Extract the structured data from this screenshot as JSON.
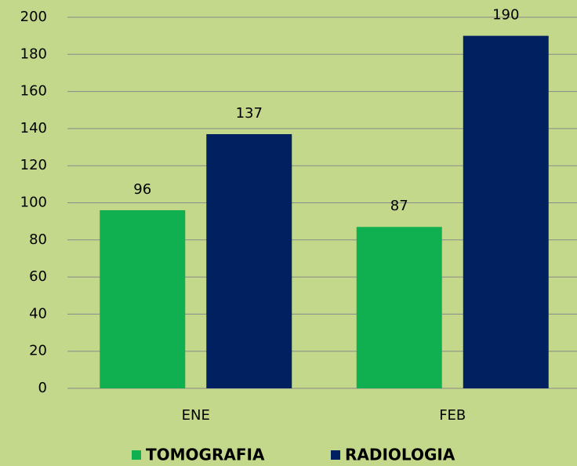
{
  "chart_data": {
    "type": "bar",
    "categories": [
      "ENE",
      "FEB"
    ],
    "series": [
      {
        "name": "TOMOGRAFIA",
        "color": "#10b050",
        "values": [
          96,
          87
        ]
      },
      {
        "name": "RADIOLOGIA",
        "color": "#002060",
        "values": [
          137,
          190
        ]
      }
    ],
    "ylim": [
      0,
      200
    ],
    "yticks": [
      0,
      20,
      40,
      60,
      80,
      100,
      120,
      140,
      160,
      180,
      200
    ],
    "grid": true,
    "legend": "bottom",
    "background": "#c3d88b",
    "legend_text_color": "#ff0000"
  }
}
